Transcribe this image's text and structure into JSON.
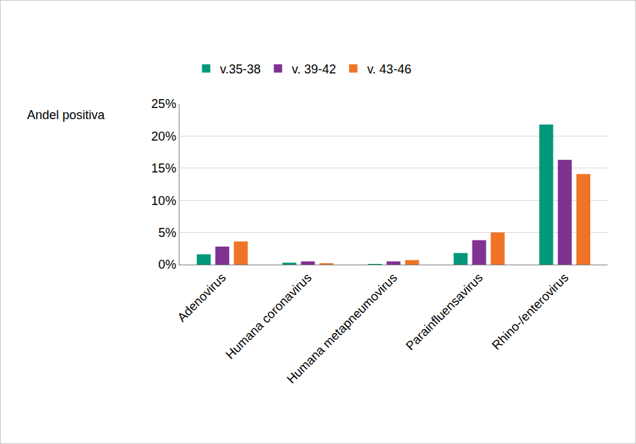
{
  "chart_data": {
    "type": "bar",
    "y_label": "Andel positiva",
    "categories": [
      "Adenovirus",
      "Humana coronavirus",
      "Humana metapneumovirus",
      "Parainfluensavirus",
      "Rhino-/enterovirus"
    ],
    "series": [
      {
        "name": "v.35-38",
        "color": "#009879",
        "values": [
          1.6,
          0.3,
          0.1,
          1.8,
          21.8
        ]
      },
      {
        "name": "v. 39-42",
        "color": "#7f3291",
        "values": [
          2.8,
          0.5,
          0.5,
          3.8,
          16.3
        ]
      },
      {
        "name": "v. 43-46",
        "color": "#f07427",
        "values": [
          3.6,
          0.2,
          0.7,
          5.0,
          14.1
        ]
      }
    ],
    "ylim": [
      0,
      25
    ],
    "yticks": [
      {
        "value": 0,
        "label": "0%"
      },
      {
        "value": 5,
        "label": "5%"
      },
      {
        "value": 10,
        "label": "10%"
      },
      {
        "value": 15,
        "label": "15%"
      },
      {
        "value": 20,
        "label": "20%"
      },
      {
        "value": 25,
        "label": "25%"
      }
    ],
    "grid": true,
    "legend": "top"
  }
}
